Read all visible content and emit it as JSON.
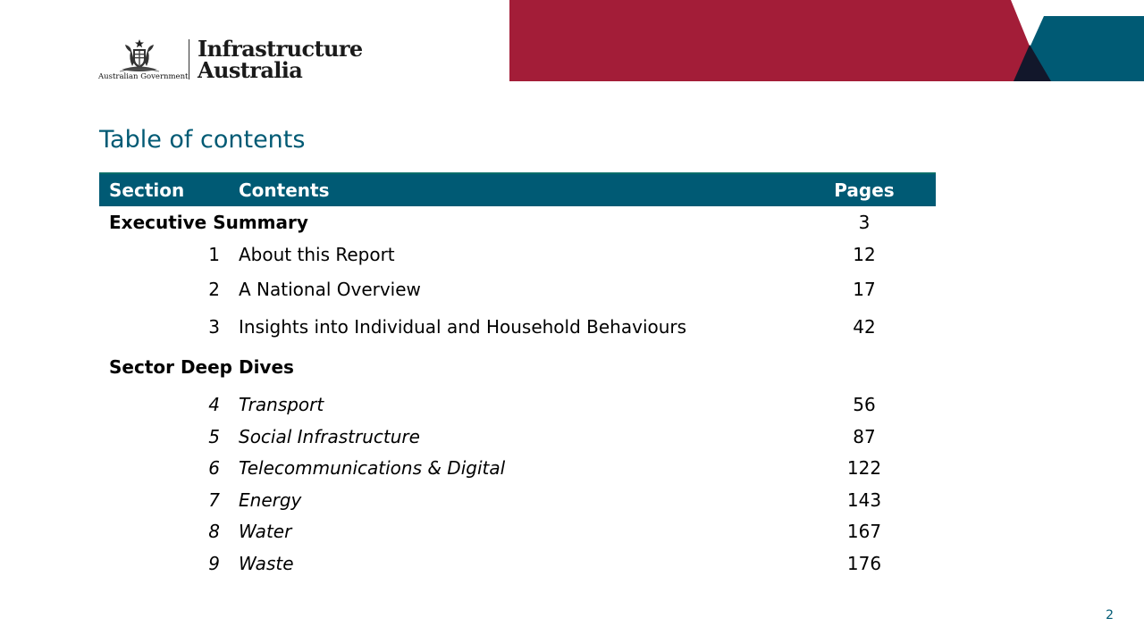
{
  "header": {
    "government_label": "Australian Government",
    "org_name_line1": "Infrastructure",
    "org_name_line2": "Australia",
    "icons": [
      "coat-of-arms-icon"
    ],
    "colors": {
      "crimson": "#a31d38",
      "teal": "#005a74",
      "navy": "#12172b"
    }
  },
  "title": "Table of contents",
  "table": {
    "headers": {
      "section": "Section",
      "contents": "Contents",
      "pages": "Pages"
    },
    "groups": [
      {
        "label": "Executive Summary",
        "page": "3",
        "items": [
          {
            "number": "1",
            "title": "About this Report",
            "page": "12"
          },
          {
            "number": "2",
            "title": "A National Overview",
            "page": "17"
          },
          {
            "number": "3",
            "title": "Insights into Individual and Household Behaviours",
            "page": "42"
          }
        ]
      },
      {
        "label": "Sector Deep Dives",
        "page": "",
        "items": [
          {
            "number": "4",
            "title": "Transport",
            "page": "56"
          },
          {
            "number": "5",
            "title": "Social Infrastructure",
            "page": "87"
          },
          {
            "number": "6",
            "title": "Telecommunications & Digital",
            "page": "122"
          },
          {
            "number": "7",
            "title": "Energy",
            "page": "143"
          },
          {
            "number": "8",
            "title": "Water",
            "page": "167"
          },
          {
            "number": "9",
            "title": "Waste",
            "page": "176"
          }
        ]
      }
    ]
  },
  "page_number": "2"
}
